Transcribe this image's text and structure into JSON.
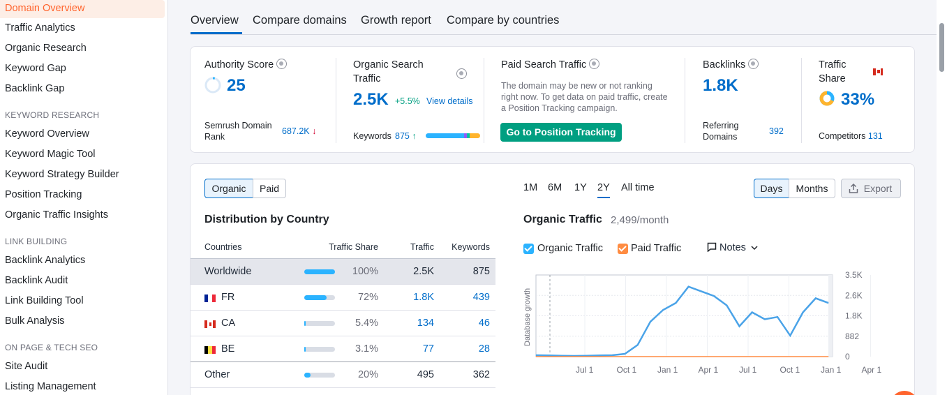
{
  "sidebar": {
    "items_top": [
      "Domain Overview",
      "Traffic Analytics",
      "Organic Research",
      "Keyword Gap",
      "Backlink Gap"
    ],
    "section_keyword": "KEYWORD RESEARCH",
    "items_keyword": [
      "Keyword Overview",
      "Keyword Magic Tool",
      "Keyword Strategy Builder",
      "Position Tracking",
      "Organic Traffic Insights"
    ],
    "section_link": "LINK BUILDING",
    "items_link": [
      "Backlink Analytics",
      "Backlink Audit",
      "Link Building Tool",
      "Bulk Analysis"
    ],
    "section_onpage": "ON PAGE & TECH SEO",
    "items_onpage": [
      "Site Audit",
      "Listing Management"
    ]
  },
  "tabs": [
    "Overview",
    "Compare domains",
    "Growth report",
    "Compare by countries"
  ],
  "metrics": {
    "authority": {
      "title": "Authority Score",
      "value": "25",
      "rank_label": "Semrush Domain Rank",
      "rank_value": "687.2K",
      "rank_arrow": "↓"
    },
    "organic": {
      "title": "Organic Search Traffic",
      "value": "2.5K",
      "change": "+5.5%",
      "details": "View details",
      "keywords_label": "Keywords",
      "keywords_value": "875",
      "keywords_arrow": "↑"
    },
    "paid": {
      "title": "Paid Search Traffic",
      "note": "The domain may be new or not ranking right now. To get data on paid traffic, create a Position Tracking campaign.",
      "button": "Go to Position Tracking"
    },
    "backlinks": {
      "title": "Backlinks",
      "value": "1.8K",
      "ref_label": "Referring Domains",
      "ref_value": "392"
    },
    "share": {
      "title": "Traffic Share",
      "value": "33%",
      "competitors_label": "Competitors",
      "competitors_value": "131"
    }
  },
  "controls": {
    "organic": "Organic",
    "paid": "Paid",
    "periods": [
      "1M",
      "6M",
      "1Y",
      "2Y",
      "All time"
    ],
    "selected_period": "2Y",
    "days": "Days",
    "months": "Months",
    "export": "Export"
  },
  "distribution": {
    "title": "Distribution by Country",
    "headers": [
      "Countries",
      "Traffic Share",
      "Traffic",
      "Keywords"
    ],
    "rows": [
      {
        "country": "Worldwide",
        "share": "100%",
        "share_frac": 1.0,
        "traffic": "2.5K",
        "keywords": "875"
      },
      {
        "country": "FR",
        "share": "72%",
        "share_frac": 0.72,
        "traffic": "1.8K",
        "keywords": "439"
      },
      {
        "country": "CA",
        "share": "5.4%",
        "share_frac": 0.054,
        "traffic": "134",
        "keywords": "46"
      },
      {
        "country": "BE",
        "share": "3.1%",
        "share_frac": 0.031,
        "traffic": "77",
        "keywords": "28"
      },
      {
        "country": "Other",
        "share": "20%",
        "share_frac": 0.2,
        "traffic": "495",
        "keywords": "362"
      }
    ]
  },
  "traffic_chart": {
    "title": "Organic Traffic",
    "subtitle": "2,499/month",
    "legend_organic": "Organic Traffic",
    "legend_paid": "Paid Traffic",
    "notes": "Notes",
    "side_label": "Database growth",
    "colors": {
      "organic": "#4aa3e8",
      "paid": "#ff8c42"
    }
  },
  "chart_data": {
    "type": "line",
    "x": [
      "Apr",
      "May",
      "Jun",
      "Jul",
      "Aug",
      "Sep",
      "Oct",
      "Nov",
      "Dec",
      "Jan",
      "Feb",
      "Mar",
      "Apr",
      "May",
      "Jun",
      "Jul",
      "Aug",
      "Sep",
      "Oct",
      "Nov",
      "Dec",
      "Jan",
      "Feb",
      "Mar"
    ],
    "x_tick_labels": [
      "Jul 1",
      "Oct 1",
      "Jan 1",
      "Apr 1",
      "Jul 1",
      "Oct 1",
      "Jan 1",
      "Apr 1"
    ],
    "y_tick_labels": [
      "3.5K",
      "2.6K",
      "1.8K",
      "882",
      "0"
    ],
    "ylim": [
      0,
      3500
    ],
    "series": [
      {
        "name": "Organic Traffic",
        "values": [
          60,
          50,
          40,
          30,
          40,
          50,
          60,
          120,
          500,
          1500,
          2000,
          2300,
          3000,
          2800,
          2600,
          2200,
          1300,
          1900,
          1600,
          1700,
          900,
          1900,
          2500,
          2300
        ]
      },
      {
        "name": "Paid Traffic",
        "values": [
          0,
          0,
          0,
          0,
          0,
          0,
          0,
          0,
          0,
          0,
          0,
          0,
          0,
          0,
          0,
          0,
          0,
          0,
          0,
          0,
          0,
          0,
          0,
          0
        ]
      }
    ],
    "grid": true
  }
}
